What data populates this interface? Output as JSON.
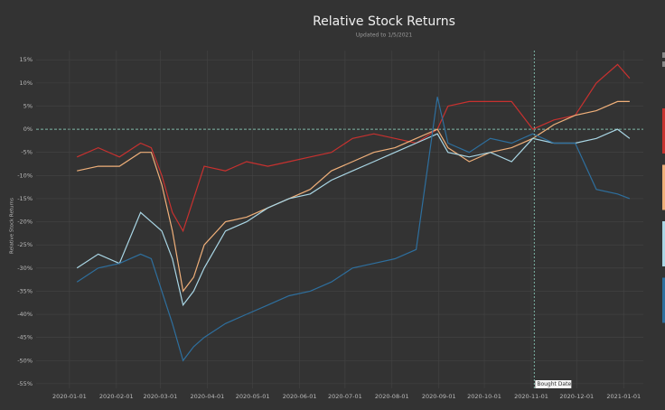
{
  "chart_data": {
    "type": "line",
    "title": "Relative Stock Returns",
    "subtitle": "Updated to 1/5/2021",
    "y_label": "Relative Stock Returns",
    "annotation": "Bought Date",
    "bought_date": "2020-11-03",
    "x": [
      "2020-01-06",
      "2020-01-20",
      "2020-02-03",
      "2020-02-17",
      "2020-02-24",
      "2020-03-02",
      "2020-03-09",
      "2020-03-16",
      "2020-03-23",
      "2020-03-30",
      "2020-04-13",
      "2020-04-27",
      "2020-05-11",
      "2020-05-25",
      "2020-06-08",
      "2020-06-22",
      "2020-07-06",
      "2020-07-20",
      "2020-08-03",
      "2020-08-17",
      "2020-08-31",
      "2020-09-07",
      "2020-09-21",
      "2020-10-05",
      "2020-10-19",
      "2020-11-02",
      "2020-11-16",
      "2020-11-30",
      "2020-12-14",
      "2020-12-28",
      "2021-01-05"
    ],
    "series": [
      {
        "color": "#c8312f",
        "values": [
          -6,
          -4,
          -6,
          -3,
          -4,
          -10,
          -18,
          -22,
          -15,
          -8,
          -9,
          -7,
          -8,
          -7,
          -6,
          -5,
          -2,
          -1,
          -2,
          -3,
          0,
          5,
          6,
          6,
          6,
          0,
          2,
          3,
          10,
          14,
          11
        ]
      },
      {
        "color": "#f0b07a",
        "values": [
          -9,
          -8,
          -8,
          -5,
          -5,
          -12,
          -22,
          -35,
          -32,
          -25,
          -20,
          -19,
          -17,
          -15,
          -13,
          -9,
          -7,
          -5,
          -4,
          -2,
          0,
          -4,
          -7,
          -5,
          -4,
          -2,
          1,
          3,
          4,
          6,
          6
        ]
      },
      {
        "color": "#a9d6e5",
        "values": [
          -30,
          -27,
          -29,
          -18,
          -20,
          -22,
          -28,
          -38,
          -35,
          -30,
          -22,
          -20,
          -17,
          -15,
          -14,
          -11,
          -9,
          -7,
          -5,
          -3,
          -1,
          -5,
          -6,
          -5,
          -7,
          -2,
          -3,
          -3,
          -2,
          0,
          -2
        ]
      },
      {
        "color": "#2e6f9e",
        "values": [
          -33,
          -30,
          -29,
          -27,
          -28,
          -35,
          -42,
          -50,
          -47,
          -45,
          -42,
          -40,
          -38,
          -36,
          -35,
          -33,
          -30,
          -29,
          -28,
          -26,
          7,
          -3,
          -5,
          -2,
          -3,
          -1,
          -3,
          -3,
          -13,
          -14,
          -15
        ]
      }
    ],
    "xlim": [
      "2019-12-10",
      "2021-01-14"
    ],
    "xticks": [
      "2020-01-01",
      "2020-02-01",
      "2020-03-01",
      "2020-04-01",
      "2020-05-01",
      "2020-06-01",
      "2020-07-01",
      "2020-08-01",
      "2020-09-01",
      "2020-10-01",
      "2020-11-01",
      "2020-12-01",
      "2021-01-01"
    ],
    "ylim": [
      -56,
      17
    ],
    "yticks": [
      {
        "value": 15,
        "label": "15%"
      },
      {
        "value": 10,
        "label": "10%"
      },
      {
        "value": 5,
        "label": "5%"
      },
      {
        "value": 0,
        "label": "0%"
      },
      {
        "value": -5,
        "label": "-5%"
      },
      {
        "value": -10,
        "label": "-10%"
      },
      {
        "value": -15,
        "label": "-15%"
      },
      {
        "value": -20,
        "label": "-20%"
      },
      {
        "value": -25,
        "label": "-25%"
      },
      {
        "value": -30,
        "label": "-30%"
      },
      {
        "value": -35,
        "label": "-35%"
      },
      {
        "value": -40,
        "label": "-40%"
      },
      {
        "value": -45,
        "label": "-45%"
      },
      {
        "value": -50,
        "label": "-50%"
      },
      {
        "value": -55,
        "label": "-55%"
      }
    ],
    "grid": true
  }
}
